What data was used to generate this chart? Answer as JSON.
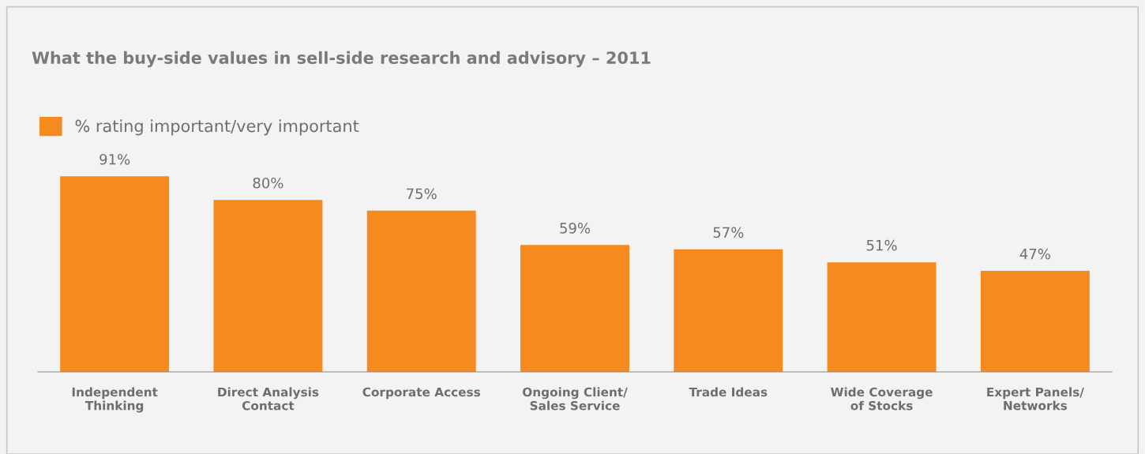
{
  "chart_data": {
    "type": "bar",
    "title": "What the buy-side values in sell-side research and advisory – 2011",
    "categories": [
      "Independent\nThinking",
      "Direct Analysis\nContact",
      "Corporate Access",
      "Ongoing Client/\nSales Service",
      "Trade Ideas",
      "Wide Coverage\nof Stocks",
      "Expert Panels/\nNetworks"
    ],
    "series": [
      {
        "name": "% rating important/very important",
        "color": "#f58b1f",
        "values": [
          91,
          80,
          75,
          59,
          57,
          51,
          47
        ],
        "value_labels": [
          "91%",
          "80%",
          "75%",
          "59%",
          "57%",
          "51%",
          "47%"
        ]
      }
    ],
    "legend": "top left",
    "grid": false,
    "tick_labels": "x"
  }
}
